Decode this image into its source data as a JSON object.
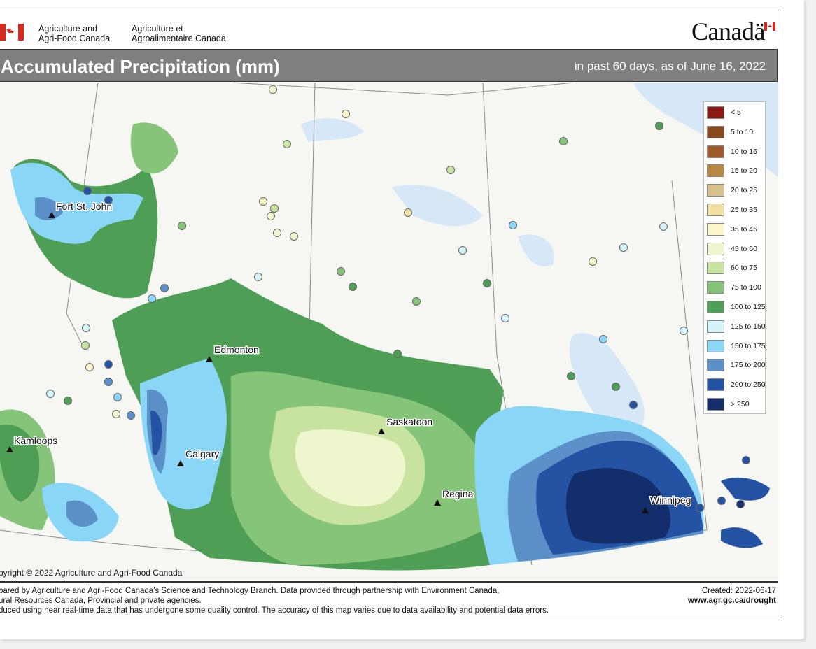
{
  "header": {
    "dept_en_line1": "Agriculture and",
    "dept_en_line2": "Agri-Food Canada",
    "dept_fr_line1": "Agriculture et",
    "dept_fr_line2": "Agroalimentaire Canada",
    "wordmark": "Canadä"
  },
  "title": {
    "main": "Accumulated Precipitation (mm)",
    "subtitle": "in past 60 days, as of June 16, 2022"
  },
  "cities": [
    {
      "name": "Fort St. John"
    },
    {
      "name": "Edmonton"
    },
    {
      "name": "Kamloops"
    },
    {
      "name": "Calgary"
    },
    {
      "name": "Saskatoon"
    },
    {
      "name": "Regina"
    },
    {
      "name": "Winnipeg"
    }
  ],
  "legend": [
    {
      "label": "< 5",
      "color": "#8b1a14"
    },
    {
      "label": "5 to 10",
      "color": "#8a4a1e"
    },
    {
      "label": "10 to 15",
      "color": "#9e5a2c"
    },
    {
      "label": "15 to 20",
      "color": "#b88945"
    },
    {
      "label": "20 to 25",
      "color": "#d8c08b"
    },
    {
      "label": "25 to 35",
      "color": "#efe0a2"
    },
    {
      "label": "35 to 45",
      "color": "#fbf7c8"
    },
    {
      "label": "45 to 60",
      "color": "#eef6cd"
    },
    {
      "label": "60 to 75",
      "color": "#c8e3a0"
    },
    {
      "label": "75 to 100",
      "color": "#86c479"
    },
    {
      "label": "100 to 125",
      "color": "#4f9e56"
    },
    {
      "label": "125 to 150",
      "color": "#d4f3fb"
    },
    {
      "label": "150 to 175",
      "color": "#8ad6f6"
    },
    {
      "label": "175 to 200",
      "color": "#5b90c8"
    },
    {
      "label": "200 to 250",
      "color": "#2553a4"
    },
    {
      "label": "> 250",
      "color": "#142d6b"
    }
  ],
  "footer": {
    "copyright": "pyright © 2022 Agriculture and Agri-Food Canada",
    "line1": "pared by Agriculture and Agri-Food Canada's Science and Technology Branch. Data provided through partnership with Environment Canada,",
    "line2": "ural Resources Canada, Provincial and private agencies.",
    "line3": "duced using near real-time data that has undergone some quality control. The accuracy of this map varies due to data availability and potential data errors.",
    "created": "Created: 2022-06-17",
    "website": "www.agr.gc.ca/drought"
  }
}
